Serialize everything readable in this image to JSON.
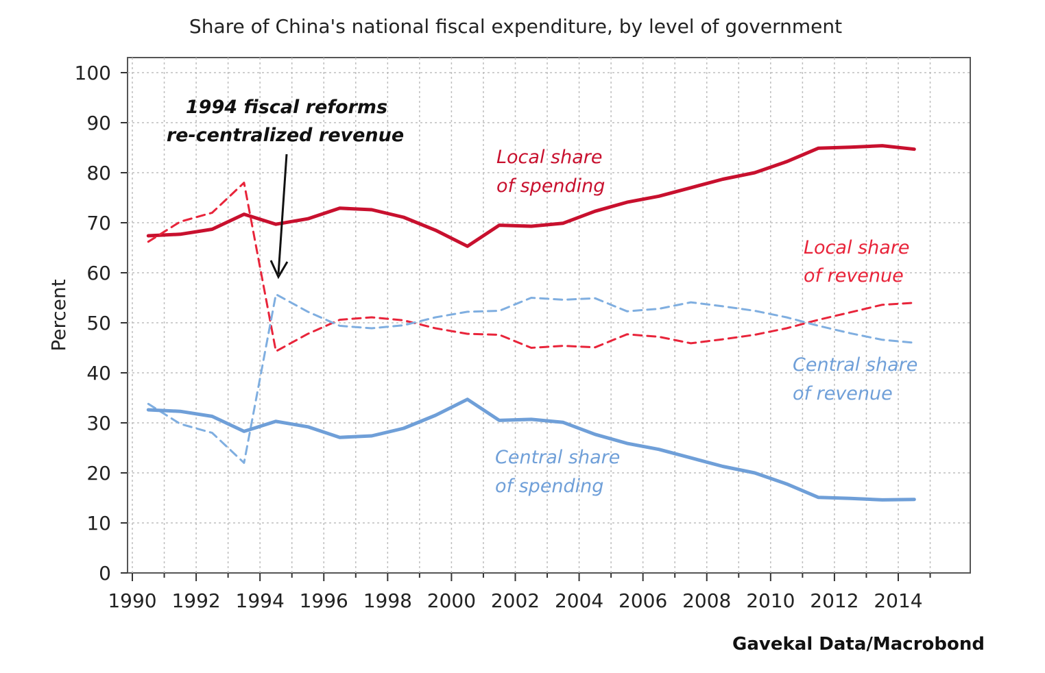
{
  "chart_data": {
    "type": "line",
    "title": "Share of China's national fiscal expenditure, by level of government",
    "ylabel": "Percent",
    "xlabel": "",
    "source": "Gavekal Data/Macrobond",
    "xlim": [
      1990,
      2016
    ],
    "ylim": [
      0,
      100
    ],
    "x_ticks": [
      1990,
      1992,
      1994,
      1996,
      1998,
      2000,
      2002,
      2004,
      2006,
      2008,
      2010,
      2012,
      2014
    ],
    "y_ticks": [
      0,
      10,
      20,
      30,
      40,
      50,
      60,
      70,
      80,
      90,
      100
    ],
    "grid": true,
    "colors": {
      "local": "#c8102e",
      "local_revenue": "#e8243a",
      "central": "#6f9fd8",
      "central_revenue": "#7faee0",
      "annotation_black": "#111111"
    },
    "annotations": {
      "reform_line1": "1994 fiscal reforms",
      "reform_line2": "re-centralized revenue",
      "local_spending_line1": "Local share",
      "local_spending_line2": "of spending",
      "local_revenue_line1": "Local share",
      "local_revenue_line2": "of revenue",
      "central_revenue_line1": "Central share",
      "central_revenue_line2": "of revenue",
      "central_spending_line1": "Central share",
      "central_spending_line2": "of spending"
    },
    "x": [
      1990.5,
      1991.5,
      1992.5,
      1993.5,
      1994.5,
      1995.5,
      1996.5,
      1997.5,
      1998.5,
      1999.5,
      2000.5,
      2001.5,
      2002.5,
      2003.5,
      2004.5,
      2005.5,
      2006.5,
      2007.5,
      2008.5,
      2009.5,
      2010.5,
      2011.5,
      2012.5,
      2013.5,
      2014.5
    ],
    "series": [
      {
        "key": "local_spending",
        "style": "solid",
        "color": "#c8102e",
        "values": [
          67.4,
          67.7,
          68.7,
          71.7,
          69.7,
          70.8,
          72.9,
          72.6,
          71.1,
          68.5,
          65.3,
          69.5,
          69.3,
          69.9,
          72.3,
          74.1,
          75.3,
          77.0,
          78.7,
          80.0,
          82.2,
          84.9,
          85.1,
          85.4,
          84.7
        ]
      },
      {
        "key": "local_revenue",
        "style": "dashed",
        "color": "#e8243a",
        "values": [
          66.2,
          70.2,
          72.0,
          78.0,
          44.3,
          47.8,
          50.6,
          51.1,
          50.5,
          48.9,
          47.8,
          47.6,
          45.0,
          45.4,
          45.1,
          47.7,
          47.2,
          45.9,
          46.7,
          47.6,
          48.9,
          50.6,
          52.1,
          53.6,
          54.0
        ]
      },
      {
        "key": "central_revenue",
        "style": "dashed",
        "color": "#7faee0",
        "values": [
          33.8,
          29.8,
          28.0,
          22.0,
          55.7,
          52.2,
          49.4,
          48.9,
          49.5,
          51.1,
          52.2,
          52.4,
          55.0,
          54.6,
          54.9,
          52.3,
          52.8,
          54.1,
          53.3,
          52.4,
          51.1,
          49.4,
          47.9,
          46.6,
          46.0
        ]
      },
      {
        "key": "central_spending",
        "style": "solid",
        "color": "#6f9fd8",
        "values": [
          32.6,
          32.3,
          31.3,
          28.3,
          30.3,
          29.2,
          27.1,
          27.4,
          28.9,
          31.5,
          34.7,
          30.5,
          30.7,
          30.1,
          27.7,
          25.9,
          24.7,
          23.0,
          21.3,
          20.0,
          17.8,
          15.1,
          14.9,
          14.6,
          14.7
        ]
      }
    ]
  }
}
